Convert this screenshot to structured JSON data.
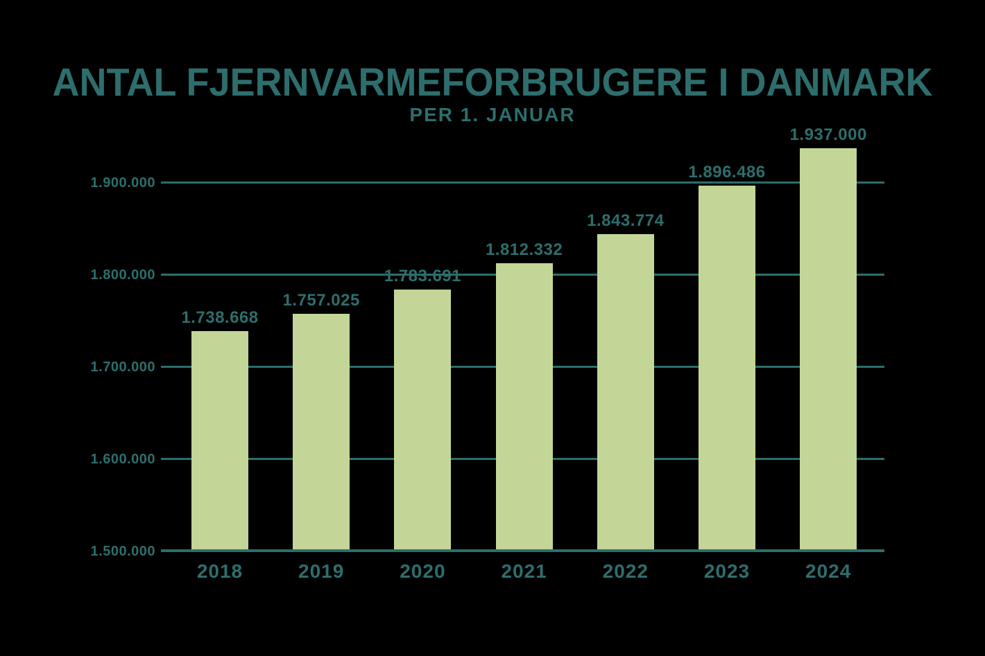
{
  "chart_data": {
    "type": "bar",
    "title": "ANTAL FJERNVARMEFORBRUGERE I DANMARK",
    "subtitle": "PER 1. JANUAR",
    "categories": [
      "2018",
      "2019",
      "2020",
      "2021",
      "2022",
      "2023",
      "2024"
    ],
    "values": [
      1738668,
      1757025,
      1783691,
      1812332,
      1843774,
      1896486,
      1937000
    ],
    "value_labels": [
      "1.738.668",
      "1.757.025",
      "1.783.691",
      "1.812.332",
      "1.843.774",
      "1.896.486",
      "1.937.000"
    ],
    "y_ticks": [
      {
        "value": 1900000,
        "label": "1.900.000"
      },
      {
        "value": 1800000,
        "label": "1.800.000"
      },
      {
        "value": 1700000,
        "label": "1.700.000"
      },
      {
        "value": 1600000,
        "label": "1.600.000"
      },
      {
        "value": 1500000,
        "label": "1.500.000"
      }
    ],
    "ylim": [
      1500000,
      1960000
    ],
    "xlabel": "",
    "ylabel": "",
    "grid": "horizontal",
    "legend": "none",
    "colors": {
      "bar": "#c3d697",
      "text": "#2d6e6d",
      "gridline": "#2d6e6d",
      "background": "#000000"
    }
  }
}
